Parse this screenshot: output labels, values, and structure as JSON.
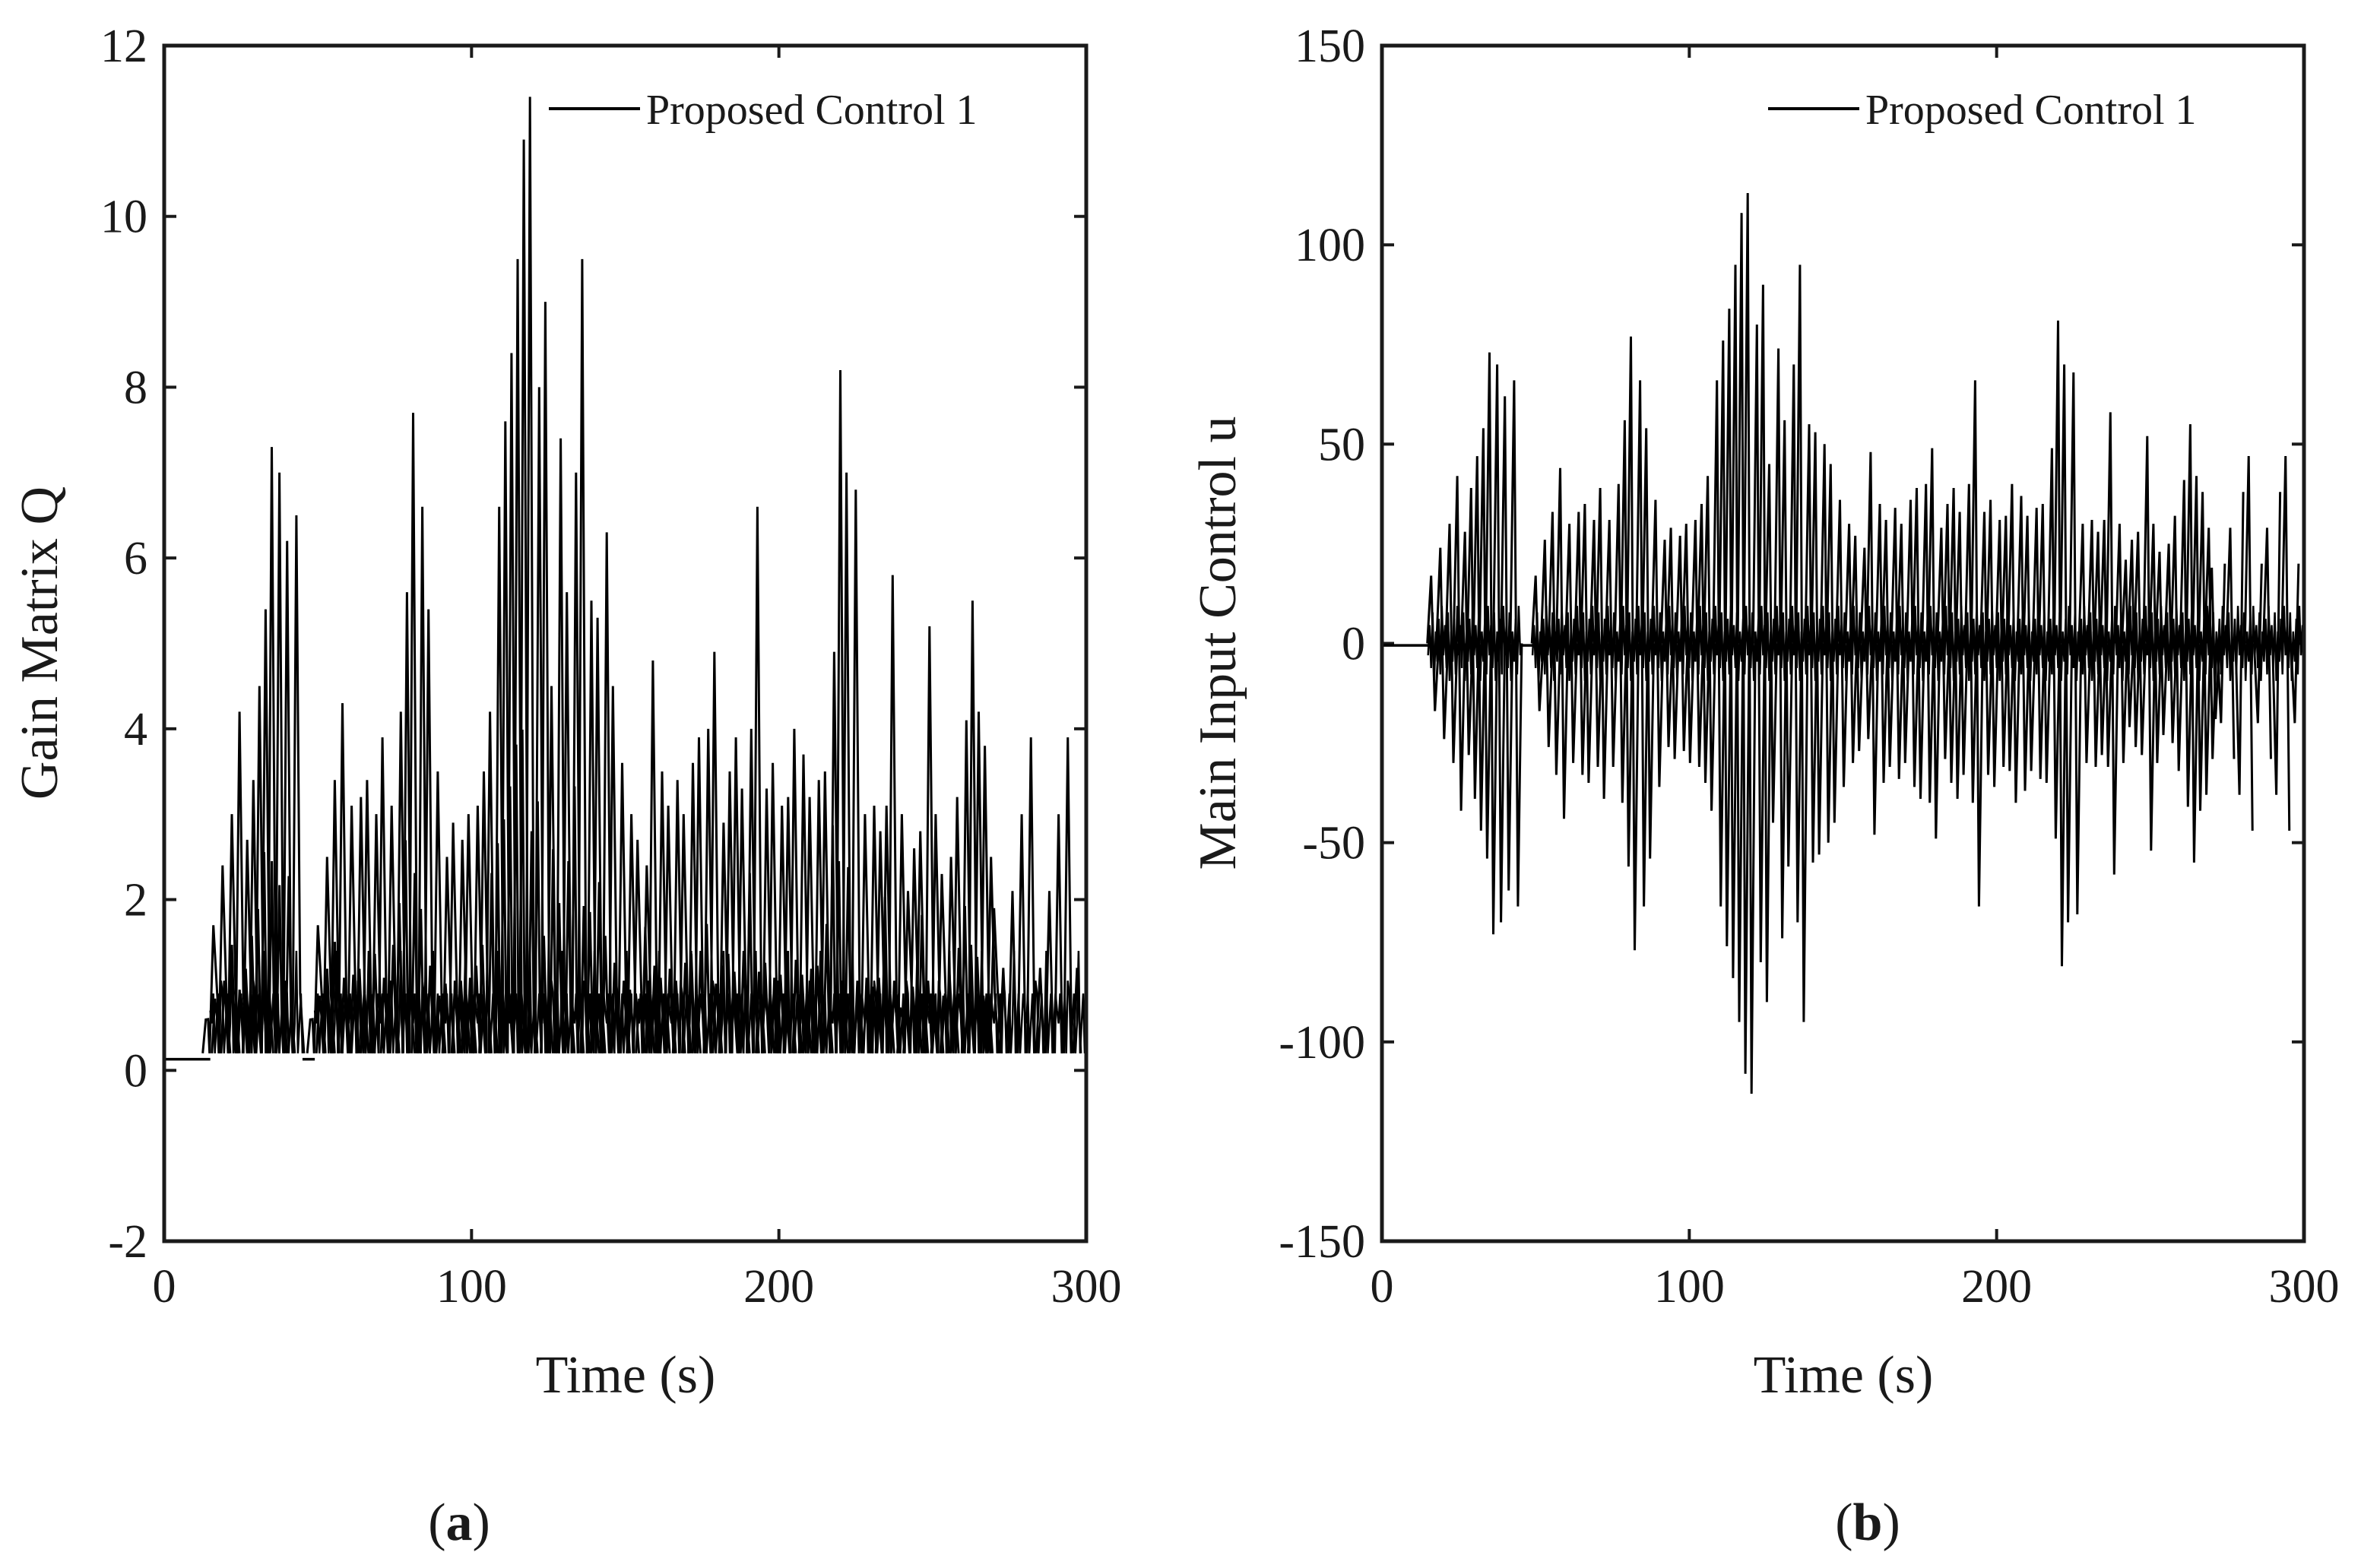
{
  "figure": {
    "captions": [
      {
        "open": "(",
        "letter": "a",
        "close": ")"
      },
      {
        "open": "(",
        "letter": "b",
        "close": ")"
      }
    ]
  },
  "chart_data": [
    {
      "type": "line",
      "panel": "a",
      "title": "",
      "xlabel": "Time (s)",
      "ylabel": "Gain Matrix Q",
      "xlim": [
        0,
        300
      ],
      "ylim": [
        -2,
        12
      ],
      "xticks": [
        0,
        100,
        200,
        300
      ],
      "xtick_labels": [
        "0",
        "100",
        "200",
        "300"
      ],
      "yticks": [
        -2,
        0,
        2,
        4,
        6,
        8,
        10,
        12
      ],
      "ytick_labels": [
        "-2",
        "0",
        "2",
        "4",
        "6",
        "8",
        "10",
        "12"
      ],
      "grid": false,
      "legend": {
        "position": "top-right",
        "entries": [
          "Proposed Control 1"
        ]
      },
      "series": [
        {
          "name": "Proposed Control 1",
          "color": "#000000",
          "baseline": 0.13,
          "active_intervals": [
            [
              15,
              45
            ],
            [
              49,
              300
            ]
          ],
          "peaks": [
            {
              "t": 16,
              "v": 1.7
            },
            {
              "t": 19,
              "v": 2.4
            },
            {
              "t": 22,
              "v": 3.0
            },
            {
              "t": 24.5,
              "v": 4.2
            },
            {
              "t": 27,
              "v": 2.7
            },
            {
              "t": 29,
              "v": 3.4
            },
            {
              "t": 31,
              "v": 4.5
            },
            {
              "t": 33,
              "v": 5.4
            },
            {
              "t": 35,
              "v": 7.3
            },
            {
              "t": 37.5,
              "v": 7.0
            },
            {
              "t": 40,
              "v": 6.2
            },
            {
              "t": 43,
              "v": 6.5
            },
            {
              "t": 50,
              "v": 1.7
            },
            {
              "t": 53,
              "v": 2.5
            },
            {
              "t": 55.5,
              "v": 3.4
            },
            {
              "t": 58,
              "v": 4.3
            },
            {
              "t": 61,
              "v": 3.1
            },
            {
              "t": 64,
              "v": 3.2
            },
            {
              "t": 66,
              "v": 3.4
            },
            {
              "t": 69,
              "v": 3.0
            },
            {
              "t": 71,
              "v": 3.9
            },
            {
              "t": 74,
              "v": 3.1
            },
            {
              "t": 77,
              "v": 4.2
            },
            {
              "t": 79,
              "v": 5.6
            },
            {
              "t": 81,
              "v": 7.7
            },
            {
              "t": 84,
              "v": 6.6
            },
            {
              "t": 86,
              "v": 5.4
            },
            {
              "t": 89,
              "v": 3.5
            },
            {
              "t": 92,
              "v": 2.5
            },
            {
              "t": 94,
              "v": 2.9
            },
            {
              "t": 97,
              "v": 2.7
            },
            {
              "t": 99,
              "v": 3.0
            },
            {
              "t": 102,
              "v": 3.1
            },
            {
              "t": 104,
              "v": 3.5
            },
            {
              "t": 106,
              "v": 4.2
            },
            {
              "t": 109,
              "v": 6.6
            },
            {
              "t": 111,
              "v": 7.6
            },
            {
              "t": 113,
              "v": 8.4
            },
            {
              "t": 115,
              "v": 9.5
            },
            {
              "t": 117,
              "v": 10.9
            },
            {
              "t": 119,
              "v": 11.4
            },
            {
              "t": 122,
              "v": 8.0
            },
            {
              "t": 124,
              "v": 9.0
            },
            {
              "t": 126,
              "v": 4.5
            },
            {
              "t": 129,
              "v": 7.4
            },
            {
              "t": 131,
              "v": 5.6
            },
            {
              "t": 134,
              "v": 7.0
            },
            {
              "t": 136,
              "v": 9.5
            },
            {
              "t": 139,
              "v": 5.5
            },
            {
              "t": 141,
              "v": 5.3
            },
            {
              "t": 144,
              "v": 6.3
            },
            {
              "t": 146,
              "v": 4.5
            },
            {
              "t": 149,
              "v": 3.6
            },
            {
              "t": 152,
              "v": 3.0
            },
            {
              "t": 154,
              "v": 2.7
            },
            {
              "t": 157,
              "v": 2.4
            },
            {
              "t": 159,
              "v": 4.8
            },
            {
              "t": 162,
              "v": 3.5
            },
            {
              "t": 164,
              "v": 3.1
            },
            {
              "t": 167,
              "v": 3.4
            },
            {
              "t": 169,
              "v": 3.0
            },
            {
              "t": 172,
              "v": 3.6
            },
            {
              "t": 174,
              "v": 3.9
            },
            {
              "t": 177,
              "v": 4.0
            },
            {
              "t": 179,
              "v": 4.9
            },
            {
              "t": 182,
              "v": 2.9
            },
            {
              "t": 184,
              "v": 3.5
            },
            {
              "t": 186,
              "v": 3.9
            },
            {
              "t": 188,
              "v": 3.3
            },
            {
              "t": 191,
              "v": 4.0
            },
            {
              "t": 193,
              "v": 6.6
            },
            {
              "t": 196,
              "v": 3.3
            },
            {
              "t": 198,
              "v": 3.6
            },
            {
              "t": 201,
              "v": 3.1
            },
            {
              "t": 203,
              "v": 3.2
            },
            {
              "t": 205,
              "v": 4.0
            },
            {
              "t": 208,
              "v": 3.7
            },
            {
              "t": 210,
              "v": 3.2
            },
            {
              "t": 213,
              "v": 3.4
            },
            {
              "t": 215,
              "v": 3.5
            },
            {
              "t": 218,
              "v": 4.9
            },
            {
              "t": 220,
              "v": 8.2
            },
            {
              "t": 222,
              "v": 7.0
            },
            {
              "t": 225,
              "v": 6.8
            },
            {
              "t": 228,
              "v": 3.0
            },
            {
              "t": 231,
              "v": 3.1
            },
            {
              "t": 233,
              "v": 2.8
            },
            {
              "t": 235,
              "v": 3.1
            },
            {
              "t": 237,
              "v": 5.8
            },
            {
              "t": 240,
              "v": 3.0
            },
            {
              "t": 242,
              "v": 2.1
            },
            {
              "t": 244,
              "v": 2.6
            },
            {
              "t": 246,
              "v": 2.8
            },
            {
              "t": 249,
              "v": 5.2
            },
            {
              "t": 251,
              "v": 3.0
            },
            {
              "t": 253,
              "v": 2.3
            },
            {
              "t": 256,
              "v": 2.5
            },
            {
              "t": 258,
              "v": 3.2
            },
            {
              "t": 261,
              "v": 4.1
            },
            {
              "t": 263,
              "v": 5.5
            },
            {
              "t": 265,
              "v": 4.2
            },
            {
              "t": 267,
              "v": 3.8
            },
            {
              "t": 269,
              "v": 2.5
            },
            {
              "t": 270,
              "v": 1.9
            }
          ]
        }
      ]
    },
    {
      "type": "line",
      "panel": "b",
      "title": "",
      "xlabel": "Time (s)",
      "ylabel": "Main Input Control u",
      "xlim": [
        0,
        300
      ],
      "ylim": [
        -150,
        150
      ],
      "xticks": [
        0,
        100,
        200,
        300
      ],
      "xtick_labels": [
        "0",
        "100",
        "200",
        "300"
      ],
      "yticks": [
        -150,
        -100,
        -50,
        0,
        50,
        100,
        150
      ],
      "ytick_labels": [
        "-150",
        "-100",
        "-50",
        "0",
        "50",
        "100",
        "150"
      ],
      "grid": false,
      "legend": {
        "position": "top-right",
        "entries": [
          "Proposed Control 1"
        ]
      },
      "series": [
        {
          "name": "Proposed Control 1",
          "color": "#000000",
          "baseline": -0.5,
          "active_intervals": [
            [
              15,
              45
            ],
            [
              49,
              300
            ]
          ],
          "peaks": [
            {
              "t": 16,
              "v": 17
            },
            {
              "t": 19,
              "v": 24
            },
            {
              "t": 22,
              "v": 30
            },
            {
              "t": 24.5,
              "v": 42
            },
            {
              "t": 27,
              "v": 28
            },
            {
              "t": 29,
              "v": 39
            },
            {
              "t": 31,
              "v": 47
            },
            {
              "t": 33,
              "v": 54
            },
            {
              "t": 35,
              "v": 73
            },
            {
              "t": 37.5,
              "v": 70
            },
            {
              "t": 40,
              "v": 62
            },
            {
              "t": 43,
              "v": 66
            },
            {
              "t": 50,
              "v": 17
            },
            {
              "t": 53,
              "v": 26
            },
            {
              "t": 55.5,
              "v": 33
            },
            {
              "t": 58,
              "v": 44
            },
            {
              "t": 61,
              "v": 30
            },
            {
              "t": 64,
              "v": 33
            },
            {
              "t": 66,
              "v": 35
            },
            {
              "t": 69,
              "v": 31
            },
            {
              "t": 71,
              "v": 39
            },
            {
              "t": 74,
              "v": 31
            },
            {
              "t": 77,
              "v": 40
            },
            {
              "t": 79,
              "v": 56
            },
            {
              "t": 81,
              "v": 77
            },
            {
              "t": 84,
              "v": 66
            },
            {
              "t": 86,
              "v": 54
            },
            {
              "t": 89,
              "v": 36
            },
            {
              "t": 92,
              "v": 26
            },
            {
              "t": 94,
              "v": 29
            },
            {
              "t": 97,
              "v": 27
            },
            {
              "t": 99,
              "v": 30
            },
            {
              "t": 102,
              "v": 31
            },
            {
              "t": 104,
              "v": 35
            },
            {
              "t": 106,
              "v": 42
            },
            {
              "t": 109,
              "v": 66
            },
            {
              "t": 111,
              "v": 76
            },
            {
              "t": 113,
              "v": 84
            },
            {
              "t": 115,
              "v": 95
            },
            {
              "t": 117,
              "v": 108
            },
            {
              "t": 119,
              "v": 113
            },
            {
              "t": 122,
              "v": 80
            },
            {
              "t": 124,
              "v": 90
            },
            {
              "t": 126,
              "v": 45
            },
            {
              "t": 129,
              "v": 74
            },
            {
              "t": 131,
              "v": 56
            },
            {
              "t": 134,
              "v": 70
            },
            {
              "t": 136,
              "v": 95
            },
            {
              "t": 139,
              "v": 55
            },
            {
              "t": 141,
              "v": 53
            },
            {
              "t": 144,
              "v": 50
            },
            {
              "t": 146,
              "v": 45
            },
            {
              "t": 149,
              "v": 36
            },
            {
              "t": 152,
              "v": 30
            },
            {
              "t": 154,
              "v": 27
            },
            {
              "t": 157,
              "v": 24
            },
            {
              "t": 159,
              "v": 48
            },
            {
              "t": 162,
              "v": 35
            },
            {
              "t": 164,
              "v": 31
            },
            {
              "t": 167,
              "v": 34
            },
            {
              "t": 169,
              "v": 30
            },
            {
              "t": 172,
              "v": 36
            },
            {
              "t": 174,
              "v": 39
            },
            {
              "t": 177,
              "v": 40
            },
            {
              "t": 179,
              "v": 49
            },
            {
              "t": 182,
              "v": 29
            },
            {
              "t": 184,
              "v": 35
            },
            {
              "t": 186,
              "v": 39
            },
            {
              "t": 188,
              "v": 33
            },
            {
              "t": 191,
              "v": 40
            },
            {
              "t": 193,
              "v": 66
            },
            {
              "t": 196,
              "v": 33
            },
            {
              "t": 198,
              "v": 36
            },
            {
              "t": 201,
              "v": 31
            },
            {
              "t": 203,
              "v": 32
            },
            {
              "t": 205,
              "v": 40
            },
            {
              "t": 208,
              "v": 37
            },
            {
              "t": 210,
              "v": 32
            },
            {
              "t": 213,
              "v": 34
            },
            {
              "t": 215,
              "v": 35
            },
            {
              "t": 218,
              "v": 49
            },
            {
              "t": 220,
              "v": 81
            },
            {
              "t": 222,
              "v": 70
            },
            {
              "t": 225,
              "v": 68
            },
            {
              "t": 228,
              "v": 30
            },
            {
              "t": 231,
              "v": 31
            },
            {
              "t": 233,
              "v": 28
            },
            {
              "t": 235,
              "v": 31
            },
            {
              "t": 237,
              "v": 58
            },
            {
              "t": 240,
              "v": 30
            },
            {
              "t": 242,
              "v": 21
            },
            {
              "t": 244,
              "v": 26
            },
            {
              "t": 246,
              "v": 28
            },
            {
              "t": 249,
              "v": 52
            },
            {
              "t": 251,
              "v": 30
            },
            {
              "t": 253,
              "v": 23
            },
            {
              "t": 256,
              "v": 25
            },
            {
              "t": 258,
              "v": 32
            },
            {
              "t": 261,
              "v": 41
            },
            {
              "t": 263,
              "v": 55
            },
            {
              "t": 265,
              "v": 42
            },
            {
              "t": 267,
              "v": 38
            },
            {
              "t": 269,
              "v": 29
            },
            {
              "t": 270,
              "v": 19
            }
          ]
        }
      ]
    }
  ]
}
